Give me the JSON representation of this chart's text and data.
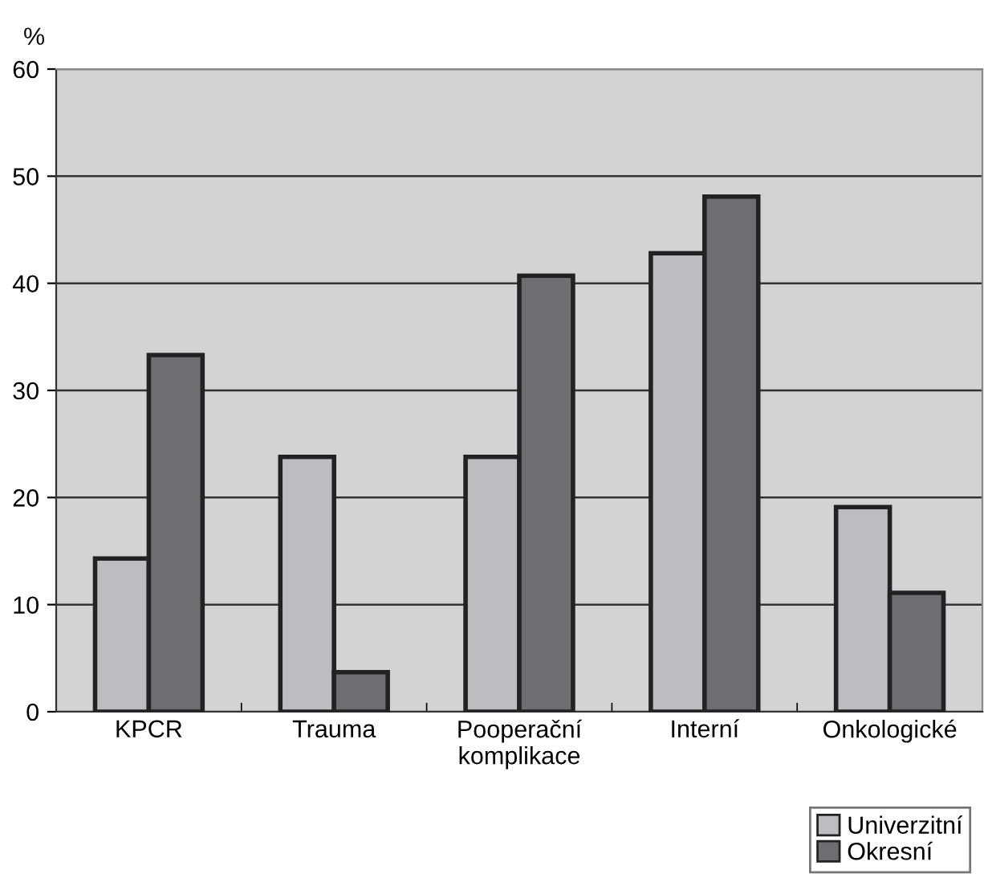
{
  "chart_data": {
    "type": "bar",
    "ylabel": "%",
    "categories": [
      "KPCR",
      "Trauma",
      "Pooperační\nkomplikace",
      "Interní",
      "Onkologické"
    ],
    "series": [
      {
        "name": "Univerzitní",
        "color": "#bcbdc1",
        "values": [
          14.3,
          23.8,
          23.8,
          42.8,
          19.1
        ]
      },
      {
        "name": "Okresní",
        "color": "#6d6e72",
        "values": [
          33.3,
          3.7,
          40.7,
          48.1,
          11.1
        ]
      }
    ],
    "ylim": [
      0,
      60
    ],
    "yticks": [
      0,
      10,
      20,
      30,
      40,
      50,
      60
    ],
    "grid": "y",
    "legend": "bottom right"
  }
}
